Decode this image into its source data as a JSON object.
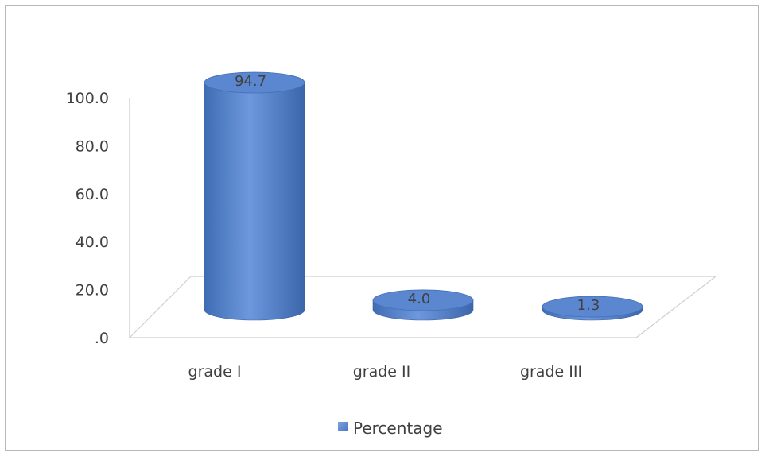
{
  "chart_data": {
    "type": "bar",
    "style": "3d-cylinder",
    "categories": [
      "grade I",
      "grade II",
      "grade III"
    ],
    "series": [
      {
        "name": "Percentage",
        "values": [
          94.7,
          4.0,
          1.3
        ],
        "color": "#4f81bd"
      }
    ],
    "data_labels": [
      "94.7",
      "4.0",
      "1.3"
    ],
    "ylim": [
      0,
      100
    ],
    "yticks": [
      0,
      20,
      40,
      60,
      80,
      100
    ],
    "ytick_labels": [
      ".0",
      "20.0",
      "40.0",
      "60.0",
      "80.0",
      "100.0"
    ],
    "grid": false,
    "legend": "bottom",
    "title": "",
    "xlabel": "",
    "ylabel": ""
  }
}
